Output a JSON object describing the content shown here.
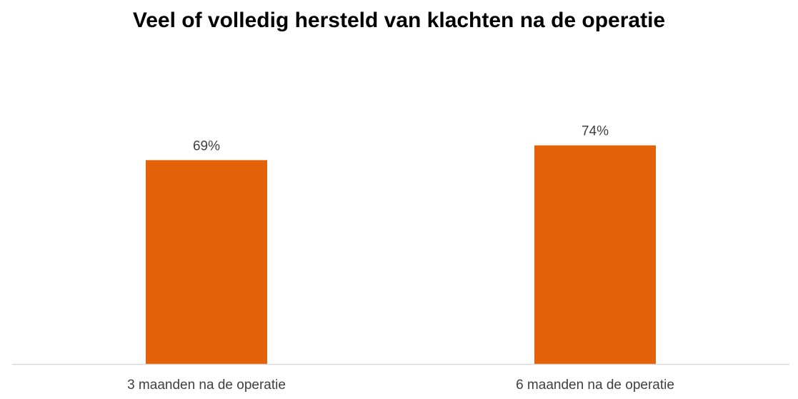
{
  "chart_data": {
    "type": "bar",
    "title": "Veel of volledig hersteld van klachten na de operatie",
    "categories": [
      "3 maanden na de operatie",
      "6 maanden na de operatie"
    ],
    "values": [
      69,
      74
    ],
    "data_labels": [
      "69%",
      "74%"
    ],
    "xlabel": "",
    "ylabel": "",
    "ylim": [
      0,
      100
    ],
    "grid": false,
    "legend": "none",
    "bar_color": "#E36209",
    "axis_color": "#D9D9D9"
  }
}
